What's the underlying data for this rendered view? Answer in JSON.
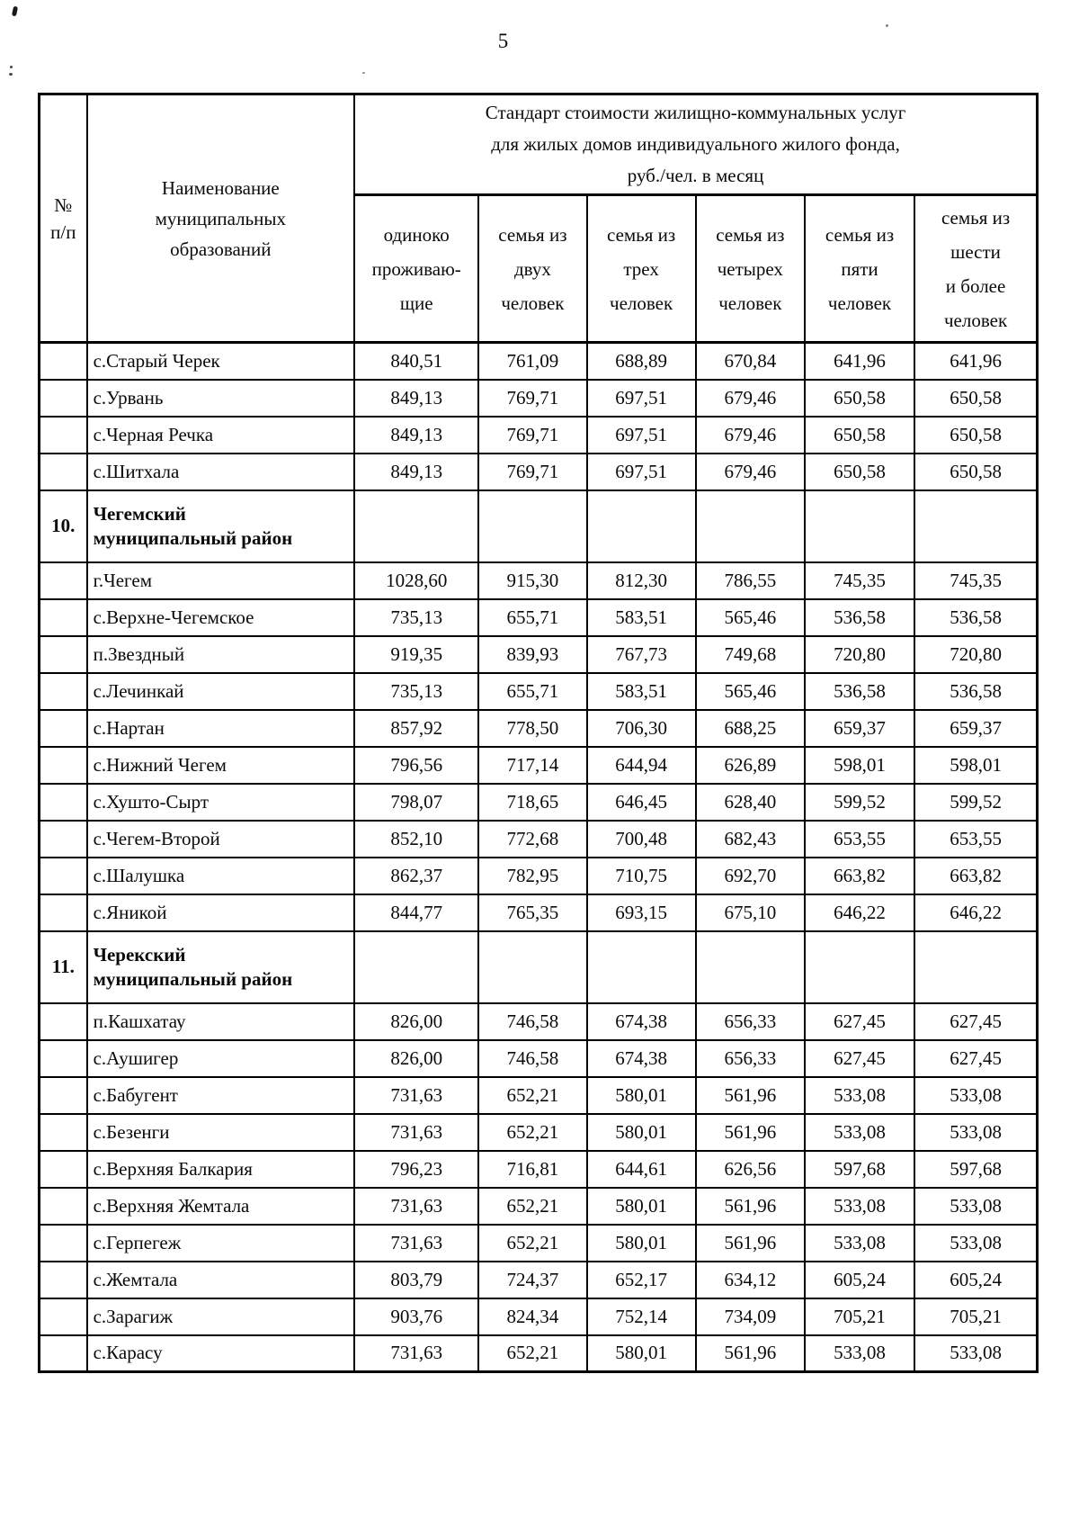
{
  "page": {
    "number": "5"
  },
  "table": {
    "header": {
      "num": "№\nп/п",
      "name": "Наименование\nмуниципальных\nобразований",
      "group_title": "Стандарт стоимости жилищно-коммунальных услуг\nдля жилых домов индивидуального жилого фонда,\nруб./чел. в месяц",
      "sub_columns": [
        "одиноко\nпроживаю-\nщие",
        "семья из\nдвух\nчеловек",
        "семья из\nтрех\nчеловек",
        "семья из\nчетырех\nчеловек",
        "семья из\nпяти\nчеловек",
        "семья из\nшести\nи более\nчеловек"
      ]
    },
    "rows": [
      {
        "type": "data",
        "num": "",
        "name": "с.Старый Черек",
        "values": [
          "840,51",
          "761,09",
          "688,89",
          "670,84",
          "641,96",
          "641,96"
        ]
      },
      {
        "type": "data",
        "num": "",
        "name": "с.Урвань",
        "values": [
          "849,13",
          "769,71",
          "697,51",
          "679,46",
          "650,58",
          "650,58"
        ]
      },
      {
        "type": "data",
        "num": "",
        "name": "с.Черная Речка",
        "values": [
          "849,13",
          "769,71",
          "697,51",
          "679,46",
          "650,58",
          "650,58"
        ]
      },
      {
        "type": "data",
        "num": "",
        "name": "с.Шитхала",
        "values": [
          "849,13",
          "769,71",
          "697,51",
          "679,46",
          "650,58",
          "650,58"
        ]
      },
      {
        "type": "section",
        "num": "10.",
        "name": "Чегемский\nмуниципальный район",
        "values": [
          "",
          "",
          "",
          "",
          "",
          ""
        ]
      },
      {
        "type": "data",
        "num": "",
        "name": "г.Чегем",
        "values": [
          "1028,60",
          "915,30",
          "812,30",
          "786,55",
          "745,35",
          "745,35"
        ]
      },
      {
        "type": "data",
        "num": "",
        "name": "с.Верхне-Чегемское",
        "values": [
          "735,13",
          "655,71",
          "583,51",
          "565,46",
          "536,58",
          "536,58"
        ]
      },
      {
        "type": "data",
        "num": "",
        "name": "п.Звездный",
        "values": [
          "919,35",
          "839,93",
          "767,73",
          "749,68",
          "720,80",
          "720,80"
        ]
      },
      {
        "type": "data",
        "num": "",
        "name": "с.Лечинкай",
        "values": [
          "735,13",
          "655,71",
          "583,51",
          "565,46",
          "536,58",
          "536,58"
        ]
      },
      {
        "type": "data",
        "num": "",
        "name": "с.Нартан",
        "values": [
          "857,92",
          "778,50",
          "706,30",
          "688,25",
          "659,37",
          "659,37"
        ]
      },
      {
        "type": "data",
        "num": "",
        "name": "с.Нижний Чегем",
        "values": [
          "796,56",
          "717,14",
          "644,94",
          "626,89",
          "598,01",
          "598,01"
        ]
      },
      {
        "type": "data",
        "num": "",
        "name": "с.Хушто-Сырт",
        "values": [
          "798,07",
          "718,65",
          "646,45",
          "628,40",
          "599,52",
          "599,52"
        ]
      },
      {
        "type": "data",
        "num": "",
        "name": "с.Чегем-Второй",
        "values": [
          "852,10",
          "772,68",
          "700,48",
          "682,43",
          "653,55",
          "653,55"
        ]
      },
      {
        "type": "data",
        "num": "",
        "name": "с.Шалушка",
        "values": [
          "862,37",
          "782,95",
          "710,75",
          "692,70",
          "663,82",
          "663,82"
        ]
      },
      {
        "type": "data",
        "num": "",
        "name": "с.Яникой",
        "values": [
          "844,77",
          "765,35",
          "693,15",
          "675,10",
          "646,22",
          "646,22"
        ]
      },
      {
        "type": "section",
        "num": "11.",
        "name": "Черекский\nмуниципальный район",
        "values": [
          "",
          "",
          "",
          "",
          "",
          ""
        ]
      },
      {
        "type": "data",
        "num": "",
        "name": "п.Кашхатау",
        "values": [
          "826,00",
          "746,58",
          "674,38",
          "656,33",
          "627,45",
          "627,45"
        ]
      },
      {
        "type": "data",
        "num": "",
        "name": "с.Аушигер",
        "values": [
          "826,00",
          "746,58",
          "674,38",
          "656,33",
          "627,45",
          "627,45"
        ]
      },
      {
        "type": "data",
        "num": "",
        "name": "с.Бабугент",
        "values": [
          "731,63",
          "652,21",
          "580,01",
          "561,96",
          "533,08",
          "533,08"
        ]
      },
      {
        "type": "data",
        "num": "",
        "name": "с.Безенги",
        "values": [
          "731,63",
          "652,21",
          "580,01",
          "561,96",
          "533,08",
          "533,08"
        ]
      },
      {
        "type": "data",
        "num": "",
        "name": "с.Верхняя Балкария",
        "values": [
          "796,23",
          "716,81",
          "644,61",
          "626,56",
          "597,68",
          "597,68"
        ]
      },
      {
        "type": "data",
        "num": "",
        "name": "с.Верхняя Жемтала",
        "values": [
          "731,63",
          "652,21",
          "580,01",
          "561,96",
          "533,08",
          "533,08"
        ]
      },
      {
        "type": "data",
        "num": "",
        "name": "с.Герпегеж",
        "values": [
          "731,63",
          "652,21",
          "580,01",
          "561,96",
          "533,08",
          "533,08"
        ]
      },
      {
        "type": "data",
        "num": "",
        "name": "с.Жемтала",
        "values": [
          "803,79",
          "724,37",
          "652,17",
          "634,12",
          "605,24",
          "605,24"
        ]
      },
      {
        "type": "data",
        "num": "",
        "name": "с.Зарагиж",
        "values": [
          "903,76",
          "824,34",
          "752,14",
          "734,09",
          "705,21",
          "705,21"
        ]
      },
      {
        "type": "data",
        "num": "",
        "name": "с.Карасу",
        "values": [
          "731,63",
          "652,21",
          "580,01",
          "561,96",
          "533,08",
          "533,08"
        ]
      }
    ]
  }
}
